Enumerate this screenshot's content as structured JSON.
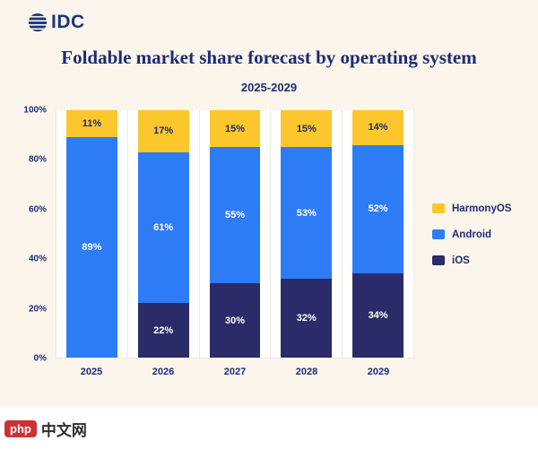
{
  "brand": {
    "logo_text": "IDC"
  },
  "header": {
    "title": "Foldable market share forecast by operating system",
    "subtitle": "2025-2029"
  },
  "watermark": {
    "badge": "php",
    "site": "中文网"
  },
  "colors": {
    "page_bg": "#FBF5EB",
    "plot_bg": "#FFFFFF",
    "grid": "#EDEAE0",
    "axis_text": "#1C2C74",
    "title_text": "#1C2C74",
    "brand_blue": "#17377E",
    "harmonyos": "#FCC62D",
    "android": "#2E7CF5",
    "ios": "#2C2B69",
    "label_light": "#FFFFFF",
    "label_dark": "#1C2C74",
    "watermark_red": "#CC3235",
    "watermark_text": "#2E2E2E"
  },
  "chart_data": {
    "type": "bar",
    "stacked": true,
    "title": "Foldable market share forecast by operating system",
    "subtitle": "2025-2029",
    "categories": [
      "2025",
      "2026",
      "2027",
      "2028",
      "2029"
    ],
    "series": [
      {
        "name": "iOS",
        "color_key": "ios",
        "label_color_key": "label_light",
        "values": [
          0,
          22,
          30,
          32,
          34
        ]
      },
      {
        "name": "Android",
        "color_key": "android",
        "label_color_key": "label_light",
        "values": [
          89,
          61,
          55,
          53,
          52
        ]
      },
      {
        "name": "HarmonyOS",
        "color_key": "harmonyos",
        "label_color_key": "label_dark",
        "values": [
          11,
          17,
          15,
          15,
          14
        ]
      }
    ],
    "value_suffix": "%",
    "ylim": [
      0,
      100
    ],
    "yticks": [
      "0%",
      "20%",
      "40%",
      "60%",
      "80%",
      "100%"
    ],
    "legend": [
      "HarmonyOS",
      "Android",
      "iOS"
    ],
    "legend_position": "right",
    "grid": "vertical-light"
  }
}
